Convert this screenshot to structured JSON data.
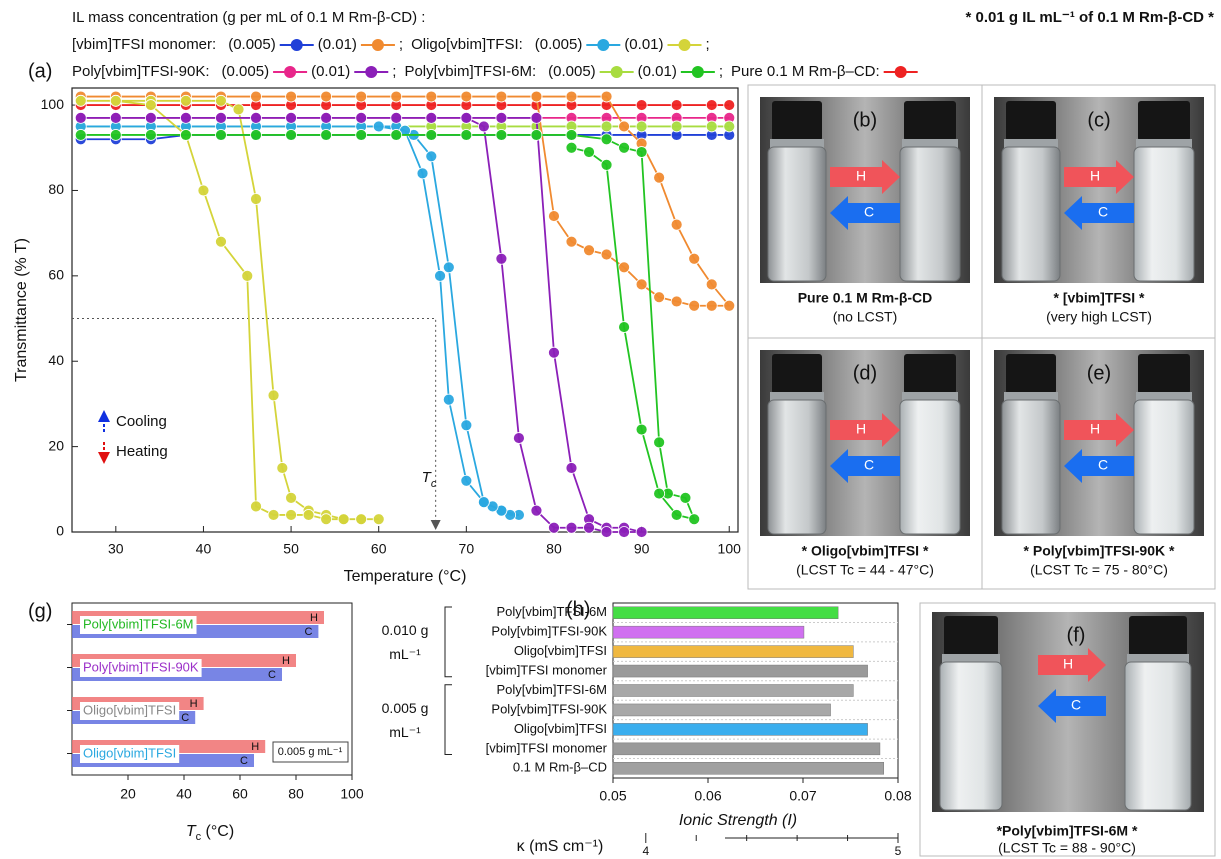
{
  "header": {
    "legend_title": "IL mass concentration (g per mL of 0.1 M Rm-β-CD) :",
    "note": "* 0.01 g IL mL⁻¹ of 0.1 M Rm-β-CD *"
  },
  "chart_data": [
    {
      "type": "line",
      "panel_label": "(a)",
      "xlabel": "Temperature (°C)",
      "ylabel": "Transmittance (% T)",
      "xlim": [
        25,
        101
      ],
      "ylim": [
        0,
        104
      ],
      "xticks": [
        30,
        40,
        50,
        60,
        70,
        80,
        90,
        100
      ],
      "yticks": [
        0,
        20,
        40,
        60,
        80,
        100
      ],
      "legend_groups": [
        "[vbim]TFSI monomer:",
        "Oligo[vbim]TFSI:",
        "Poly[vbim]TFSI-90K:",
        "Poly[vbim]TFSI-6M:"
      ],
      "legend_separator": ";",
      "series": [
        {
          "name": "(0.005)",
          "color": "#2040d8",
          "x": [
            26,
            30,
            34,
            38,
            42,
            46,
            50,
            54,
            58,
            62,
            66,
            70,
            74,
            78,
            82,
            86,
            90,
            94,
            98,
            100
          ],
          "values": [
            92,
            92,
            92,
            93,
            93,
            93,
            93,
            93,
            93,
            93,
            93,
            93,
            93,
            93,
            93,
            93,
            93,
            93,
            93,
            93
          ]
        },
        {
          "name": "(0.01)",
          "color": "#f08a30",
          "x": [
            26,
            30,
            34,
            38,
            42,
            46,
            50,
            54,
            58,
            62,
            66,
            70,
            74,
            78,
            82,
            86,
            88,
            90,
            92,
            94,
            96,
            98,
            100,
            98,
            96,
            94,
            92,
            90,
            88,
            86,
            84,
            82,
            80,
            78
          ],
          "values": [
            102,
            102,
            102,
            102,
            102,
            102,
            102,
            102,
            102,
            102,
            102,
            102,
            102,
            102,
            102,
            102,
            95,
            91,
            83,
            72,
            64,
            58,
            53,
            53,
            53,
            54,
            55,
            58,
            62,
            65,
            66,
            68,
            74,
            102
          ]
        },
        {
          "name": "(0.005)",
          "color": "#2aa8e0",
          "x": [
            26,
            30,
            34,
            38,
            42,
            46,
            50,
            54,
            58,
            62,
            64,
            66,
            68,
            70,
            72,
            74,
            76,
            75,
            74,
            73,
            72,
            70,
            68,
            67,
            65,
            63,
            60
          ],
          "values": [
            95,
            95,
            95,
            95,
            95,
            95,
            95,
            95,
            95,
            95,
            93,
            88,
            62,
            25,
            7,
            5,
            4,
            4,
            5,
            6,
            7,
            12,
            31,
            60,
            84,
            94,
            95
          ]
        },
        {
          "name": "(0.01)",
          "color": "#d4d43a",
          "x": [
            26,
            30,
            34,
            38,
            42,
            44,
            46,
            48,
            49,
            50,
            52,
            54,
            56,
            58,
            60,
            58,
            56,
            54,
            52,
            50,
            48,
            46,
            45,
            42,
            40,
            38,
            34,
            30,
            26
          ],
          "values": [
            101,
            101,
            101,
            101,
            101,
            99,
            78,
            32,
            15,
            8,
            5,
            4,
            3,
            3,
            3,
            3,
            3,
            3,
            4,
            4,
            4,
            6,
            60,
            68,
            80,
            93,
            100,
            101,
            101
          ]
        },
        {
          "name": "(0.005)",
          "color": "#e8268a",
          "x": [
            26,
            30,
            34,
            38,
            42,
            46,
            50,
            54,
            58,
            62,
            66,
            70,
            74,
            78,
            82,
            86,
            90,
            94,
            98,
            100
          ],
          "values": [
            97,
            97,
            97,
            97,
            97,
            97,
            97,
            97,
            97,
            97,
            97,
            97,
            97,
            97,
            97,
            97,
            97,
            97,
            97,
            97
          ]
        },
        {
          "name": "(0.01)",
          "color": "#8b1fb8",
          "x": [
            26,
            30,
            34,
            38,
            42,
            46,
            50,
            54,
            58,
            62,
            66,
            70,
            74,
            78,
            80,
            82,
            84,
            86,
            88,
            90,
            88,
            86,
            84,
            82,
            80,
            78,
            76,
            74,
            72,
            70
          ],
          "values": [
            97,
            97,
            97,
            97,
            97,
            97,
            97,
            97,
            97,
            97,
            97,
            97,
            97,
            97,
            42,
            15,
            3,
            1,
            1,
            0,
            0,
            0,
            1,
            1,
            1,
            5,
            22,
            64,
            95,
            97
          ]
        },
        {
          "name": "(0.005)",
          "color": "#a8dc40",
          "x": [
            26,
            30,
            34,
            38,
            42,
            46,
            50,
            54,
            58,
            62,
            66,
            70,
            74,
            78,
            82,
            86,
            90,
            94,
            98,
            100
          ],
          "values": [
            95,
            95,
            95,
            95,
            95,
            95,
            95,
            95,
            95,
            95,
            95,
            95,
            95,
            95,
            95,
            95,
            95,
            95,
            95,
            95
          ]
        },
        {
          "name": "(0.01)",
          "color": "#22c422",
          "x": [
            26,
            30,
            34,
            38,
            42,
            46,
            50,
            54,
            58,
            62,
            66,
            70,
            74,
            78,
            82,
            86,
            88,
            90,
            92,
            93,
            95,
            96,
            94,
            92,
            90,
            88,
            86,
            84,
            82
          ],
          "values": [
            93,
            93,
            93,
            93,
            93,
            93,
            93,
            93,
            93,
            93,
            93,
            93,
            93,
            93,
            93,
            92,
            90,
            89,
            21,
            9,
            8,
            3,
            4,
            9,
            24,
            48,
            86,
            89,
            90
          ]
        },
        {
          "name": "Pure 0.1 M Rm-β–CD:",
          "color": "#ee2222",
          "x": [
            26,
            30,
            34,
            38,
            42,
            46,
            50,
            54,
            58,
            62,
            66,
            70,
            74,
            78,
            82,
            86,
            90,
            94,
            98,
            100
          ],
          "values": [
            100,
            100,
            100,
            100,
            100,
            100,
            100,
            100,
            100,
            100,
            100,
            100,
            100,
            100,
            100,
            100,
            100,
            100,
            100,
            100
          ]
        }
      ],
      "tc_point": {
        "x": 66.5,
        "y": 50
      },
      "annotations": {
        "tc_main": "T",
        "tc_sub": "c",
        "cooling": "Cooling",
        "heating": "Heating"
      }
    },
    {
      "type": "hbar",
      "panel_label": "(g)",
      "xlabel": {
        "main": "T",
        "sub": "c",
        "rest": " (°C)"
      },
      "xlim": [
        0,
        100
      ],
      "xticks": [
        20,
        40,
        60,
        80,
        100
      ],
      "categories": [
        "Poly[vbim]TFSI-6M",
        "Poly[vbim]TFSI-90K",
        "Oligo[vbim]TFSI",
        "Oligo[vbim]TFSI"
      ],
      "category_colors": [
        "#22b822",
        "#9b2fc8",
        "#888888",
        "#2aa8e0"
      ],
      "series": [
        {
          "name": "H",
          "color": "#f07070",
          "values": [
            90,
            80,
            47,
            69
          ]
        },
        {
          "name": "C",
          "color": "#6070e0",
          "values": [
            88,
            75,
            44,
            65
          ]
        }
      ],
      "legend_note": "0.005 g mL⁻¹"
    },
    {
      "type": "hbar-single",
      "panel_label": "(h)",
      "xlabel": "Ionic Strength (I)",
      "xlim": [
        0.05,
        0.08
      ],
      "xticks": [
        0.05,
        0.06,
        0.07,
        0.08
      ],
      "categories": [
        "Poly[vbim]TFSI-6M",
        "Poly[vbim]TFSI-90K",
        "Oligo[vbim]TFSI",
        "[vbim]TFSI monomer",
        "Poly[vbim]TFSI-6M",
        "Poly[vbim]TFSI-90K",
        "Oligo[vbim]TFSI",
        "[vbim]TFSI monomer",
        "0.1 M Rm-β–CD"
      ],
      "values": [
        0.0737,
        0.0701,
        0.0753,
        0.0768,
        0.0753,
        0.0729,
        0.0768,
        0.0781,
        0.0785
      ],
      "colors": [
        "#44dd44",
        "#d070f0",
        "#f0b840",
        "#9a9a9a",
        "#a8a8a8",
        "#a8a8a8",
        "#3aaeee",
        "#9a9a9a",
        "#a0a0a0"
      ],
      "group_labels": [
        "0.010 g mL⁻¹",
        "0.005 g mL⁻¹"
      ],
      "x2label": "κ (mS cm⁻¹)",
      "x2lim": [
        3.87,
        5
      ],
      "x2ticks": [
        4,
        5
      ]
    }
  ],
  "photo_panels": {
    "arrow_labels": {
      "heat": "H",
      "cool": "C"
    },
    "panels": [
      {
        "label": "(b)",
        "title": "Pure 0.1 M Rm-β-CD",
        "subtitle": "(no LCST)"
      },
      {
        "label": "(c)",
        "title": "* [vbim]TFSI *",
        "subtitle": "(very high LCST)"
      },
      {
        "label": "(d)",
        "title": "* Oligo[vbim]TFSI *",
        "subtitle": "(LCST Tc = 44 - 47°C)"
      },
      {
        "label": "(e)",
        "title": "* Poly[vbim]TFSI-90K *",
        "subtitle": "(LCST Tc = 75 - 80°C)"
      },
      {
        "label": "(f)",
        "title": "*Poly[vbim]TFSI-6M *",
        "subtitle": "(LCST Tc = 88 - 90°C)"
      }
    ]
  }
}
